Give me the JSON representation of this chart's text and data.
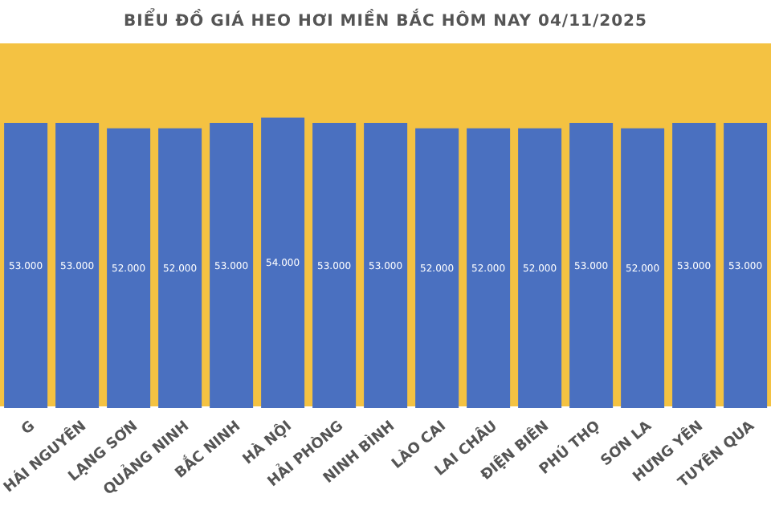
{
  "chart_data": {
    "type": "bar",
    "title": "BIỂU ĐỒ GIÁ HEO HƠI MIỀN BẮC HÔM NAY 04/11/2025",
    "categories": [
      "G",
      "HÁI NGUYÊN",
      "LẠNG SƠN",
      "QUẢNG NINH",
      "BẮC NINH",
      "HÀ NỘI",
      "HẢI PHÒNG",
      "NINH BÌNH",
      "LÀO CAI",
      "LAI CHÂU",
      "ĐIỆN BIÊN",
      "PHÚ THỌ",
      "SƠN LA",
      "HƯNG YÊN",
      "TUYÊN QUA"
    ],
    "values": [
      53000,
      53000,
      52000,
      52000,
      53000,
      54000,
      53000,
      53000,
      52000,
      52000,
      52000,
      53000,
      52000,
      53000,
      53000
    ],
    "value_labels": [
      "53.000",
      "53.000",
      "52.000",
      "52.000",
      "53.000",
      "54.000",
      "53.000",
      "53.000",
      "52.000",
      "52.000",
      "52.000",
      "53.000",
      "52.000",
      "53.000",
      "53.000"
    ],
    "color": "#4a70c0",
    "tick_labels": "x"
  }
}
